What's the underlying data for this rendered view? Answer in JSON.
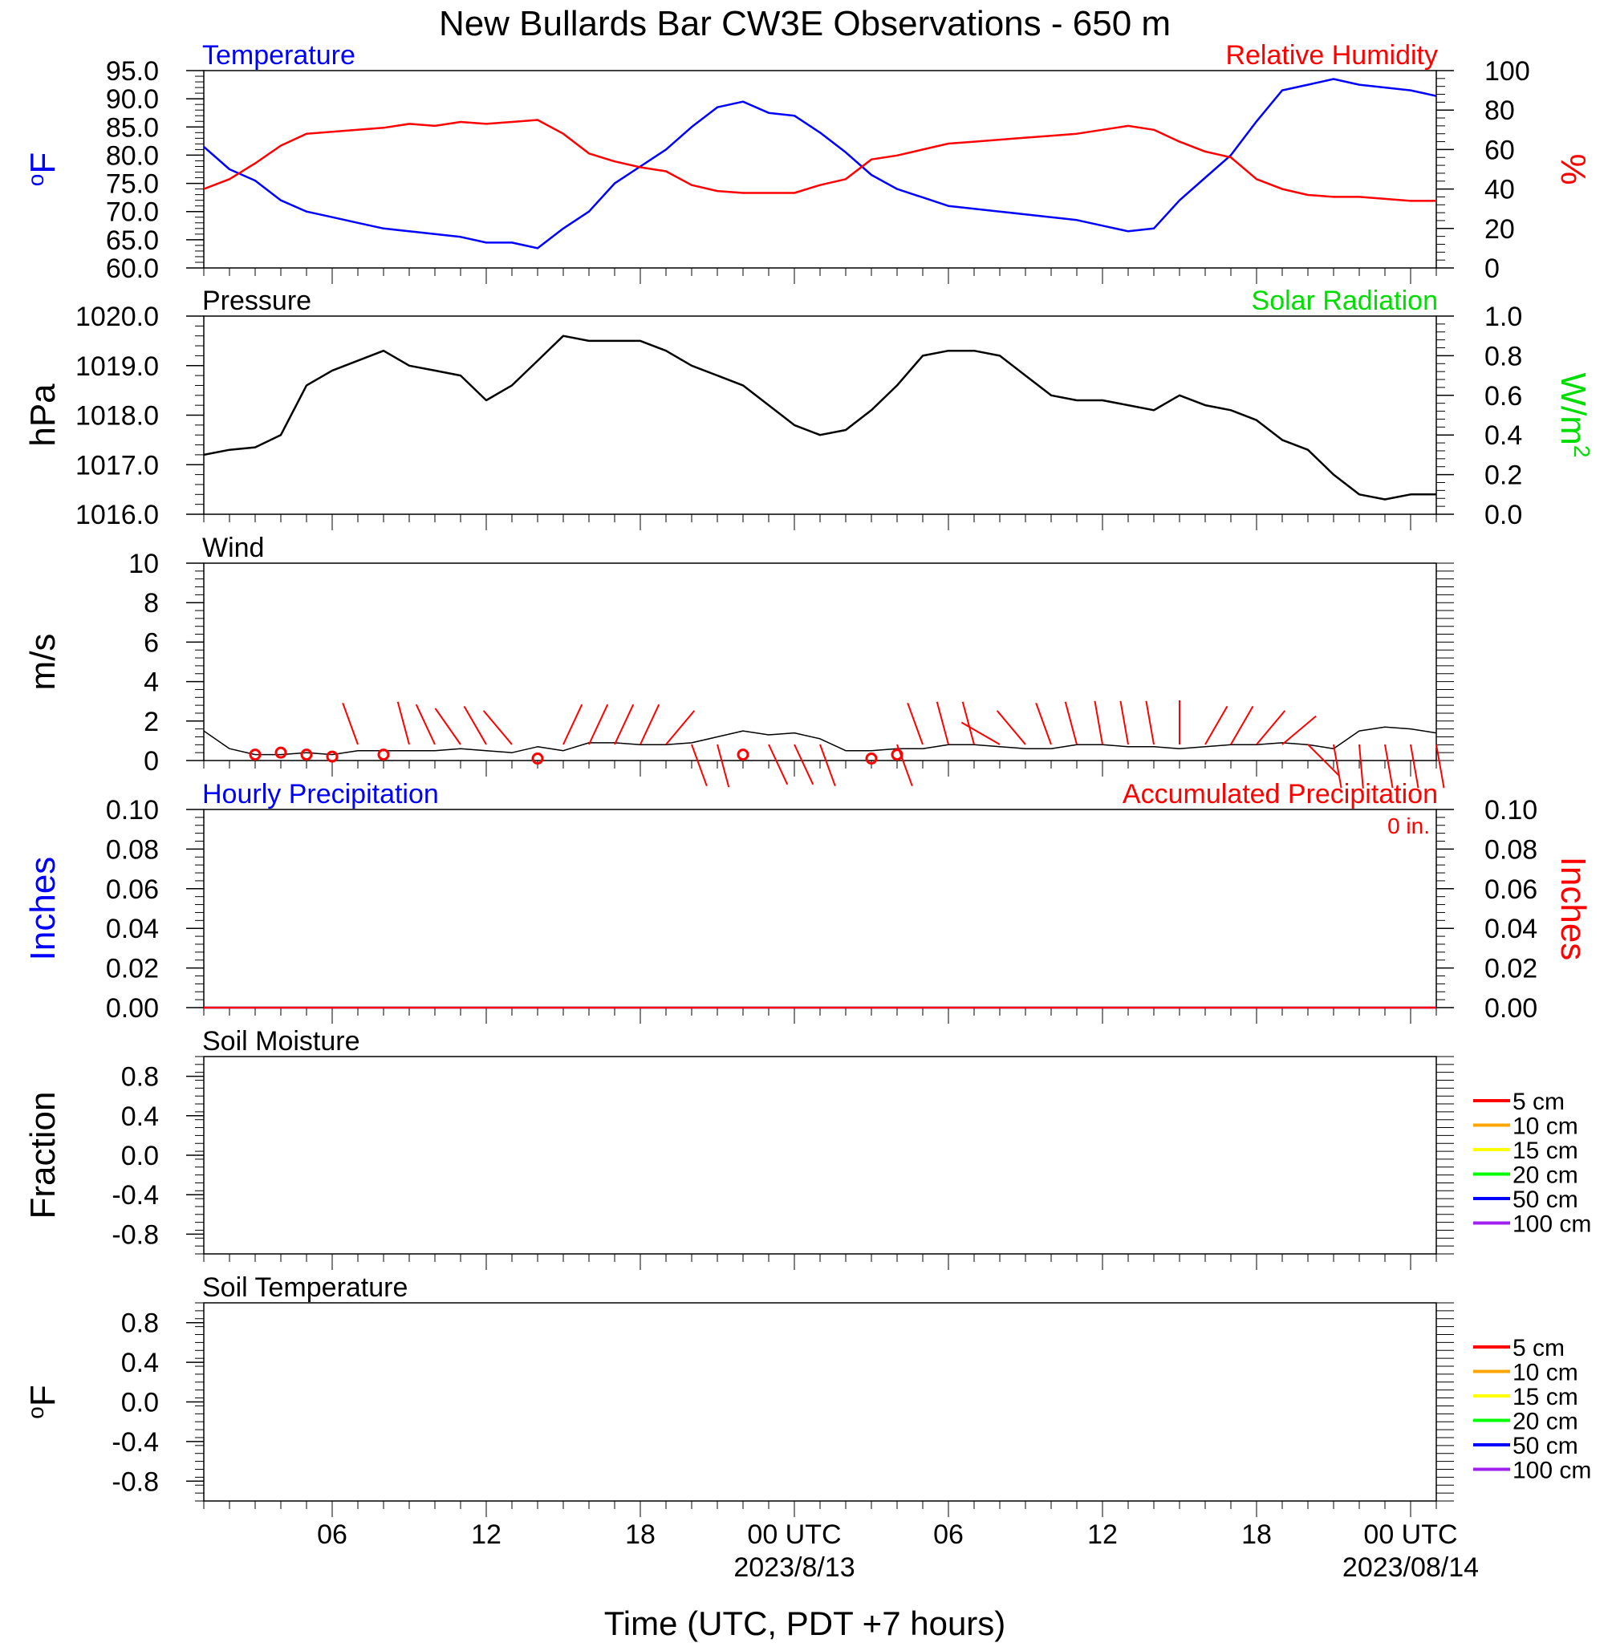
{
  "title": "New Bullards Bar CW3E Observations - 650 m",
  "xlabel": "Time (UTC, PDT +7 hours)",
  "x_ticks": [
    "06",
    "12",
    "18",
    "00 UTC",
    "06",
    "12",
    "18",
    "00 UTC"
  ],
  "x_dates": [
    "2023/8/13",
    "2023/08/14"
  ],
  "x_range_hours": [
    1,
    49
  ],
  "colors": {
    "blue": "#0000ff",
    "red": "#ff0000",
    "green": "#00dd00",
    "black": "#000000"
  },
  "chart_data": [
    {
      "type": "line",
      "title_left": "Temperature",
      "title_right": "Relative Humidity",
      "ylabel_left": "oF",
      "ylabel_right": "%",
      "ylim_left": [
        60,
        95
      ],
      "ylim_right": [
        0,
        100
      ],
      "yticks_left": [
        "95.0",
        "90.0",
        "85.0",
        "80.0",
        "75.0",
        "70.0",
        "65.0",
        "60.0"
      ],
      "yticks_right": [
        "100",
        "80",
        "60",
        "40",
        "20",
        "0"
      ],
      "x_hours": [
        1,
        2,
        3,
        4,
        5,
        6,
        7,
        8,
        9,
        10,
        11,
        12,
        13,
        14,
        15,
        16,
        17,
        18,
        19,
        20,
        21,
        22,
        23,
        24,
        25,
        26,
        27,
        28,
        29,
        30,
        31,
        32,
        33,
        34,
        35,
        36,
        37,
        38,
        39,
        40,
        41,
        42,
        43,
        44,
        45,
        46,
        47,
        48,
        49
      ],
      "series": [
        {
          "name": "Temperature",
          "color": "#0000ff",
          "axis": "left",
          "values": [
            81.5,
            77.5,
            75.5,
            72,
            70,
            69,
            68,
            67,
            66.5,
            66,
            65.5,
            64.5,
            64.5,
            63.5,
            67,
            70,
            75,
            78,
            81,
            85,
            88.5,
            89.5,
            87.5,
            87,
            84,
            80.5,
            76.5,
            74,
            72.5,
            71,
            70.5,
            70,
            69.5,
            69,
            68.5,
            67.5,
            66.5,
            67,
            72,
            76,
            80,
            86,
            91.5,
            92.5,
            93.5,
            92.5,
            92,
            91.5,
            90.5
          ]
        },
        {
          "name": "Relative Humidity",
          "color": "#ff0000",
          "axis": "right",
          "values": [
            40,
            45,
            53,
            62,
            68,
            69,
            70,
            71,
            73,
            72,
            74,
            73,
            74,
            75,
            68,
            58,
            54,
            51,
            49,
            42,
            39,
            38,
            38,
            38,
            42,
            45,
            55,
            57,
            60,
            63,
            64,
            65,
            66,
            67,
            68,
            70,
            72,
            70,
            64,
            59,
            56,
            45,
            40,
            37,
            36,
            36,
            35,
            34,
            34
          ]
        }
      ]
    },
    {
      "type": "line",
      "title_left": "Pressure",
      "title_right": "Solar Radiation",
      "ylabel_left": "hPa",
      "ylabel_right": "W/m2",
      "ylim_left": [
        1016.0,
        1020.0
      ],
      "ylim_right": [
        0,
        1.0
      ],
      "yticks_left": [
        "1020.0",
        "1019.0",
        "1018.0",
        "1017.0",
        "1016.0"
      ],
      "yticks_right": [
        "1.0",
        "0.8",
        "0.6",
        "0.4",
        "0.2",
        "0.0"
      ],
      "x_hours": [
        1,
        2,
        3,
        4,
        5,
        6,
        7,
        8,
        9,
        10,
        11,
        12,
        13,
        14,
        15,
        16,
        17,
        18,
        19,
        20,
        21,
        22,
        23,
        24,
        25,
        26,
        27,
        28,
        29,
        30,
        31,
        32,
        33,
        34,
        35,
        36,
        37,
        38,
        39,
        40,
        41,
        42,
        43,
        44,
        45,
        46,
        47,
        48,
        49
      ],
      "series": [
        {
          "name": "Pressure",
          "color": "#000000",
          "axis": "left",
          "values": [
            1017.2,
            1017.3,
            1017.35,
            1017.6,
            1018.6,
            1018.9,
            1019.1,
            1019.3,
            1019.0,
            1018.9,
            1018.8,
            1018.3,
            1018.6,
            1019.1,
            1019.6,
            1019.5,
            1019.5,
            1019.5,
            1019.3,
            1019.0,
            1018.8,
            1018.6,
            1018.2,
            1017.8,
            1017.6,
            1017.7,
            1018.1,
            1018.6,
            1019.2,
            1019.3,
            1019.3,
            1019.2,
            1018.8,
            1018.4,
            1018.3,
            1018.3,
            1018.2,
            1018.1,
            1018.4,
            1018.2,
            1018.1,
            1017.9,
            1017.5,
            1017.3,
            1016.8,
            1016.4,
            1016.3,
            1016.4,
            1016.4
          ]
        }
      ]
    },
    {
      "type": "line",
      "title_left": "Wind",
      "ylabel_left": "m/s",
      "ylim_left": [
        0,
        10
      ],
      "yticks_left": [
        "10",
        "8",
        "6",
        "4",
        "2",
        "0"
      ],
      "x_hours": [
        1,
        2,
        3,
        4,
        5,
        6,
        7,
        8,
        9,
        10,
        11,
        12,
        13,
        14,
        15,
        16,
        17,
        18,
        19,
        20,
        21,
        22,
        23,
        24,
        25,
        26,
        27,
        28,
        29,
        30,
        31,
        32,
        33,
        34,
        35,
        36,
        37,
        38,
        39,
        40,
        41,
        42,
        43,
        44,
        45,
        46,
        47,
        48,
        49
      ],
      "series": [
        {
          "name": "Wind speed",
          "color": "#000000",
          "axis": "left",
          "values": [
            1.5,
            0.6,
            0.3,
            0.3,
            0.4,
            0.3,
            0.5,
            0.5,
            0.5,
            0.5,
            0.6,
            0.5,
            0.4,
            0.7,
            0.5,
            0.9,
            0.9,
            0.8,
            0.8,
            0.9,
            1.2,
            1.5,
            1.3,
            1.4,
            1.1,
            0.5,
            0.5,
            0.6,
            0.6,
            0.8,
            0.8,
            0.7,
            0.6,
            0.6,
            0.8,
            0.8,
            0.7,
            0.7,
            0.6,
            0.7,
            0.8,
            0.8,
            0.9,
            0.8,
            0.6,
            1.5,
            1.7,
            1.6,
            1.4
          ]
        },
        {
          "name": "Wind direction (deg, barbs)",
          "color": "#ff0000",
          "x": [
            3,
            4,
            5,
            6,
            7,
            8,
            9,
            10,
            11,
            12,
            13,
            14,
            15,
            16,
            17,
            18,
            19,
            20,
            21,
            22,
            23,
            24,
            25,
            26,
            27,
            28,
            29,
            30,
            31,
            32,
            33,
            34,
            35,
            36,
            37,
            38,
            39,
            40,
            41,
            42,
            43,
            44,
            45,
            46,
            47,
            48,
            49
          ],
          "values": [
            null,
            null,
            null,
            null,
            340,
            null,
            345,
            335,
            325,
            330,
            320,
            null,
            25,
            25,
            25,
            25,
            40,
            160,
            165,
            null,
            155,
            155,
            160,
            null,
            null,
            160,
            340,
            345,
            345,
            300,
            320,
            340,
            345,
            350,
            350,
            350,
            0,
            30,
            30,
            40,
            50,
            135,
            170,
            175,
            170,
            170,
            170
          ]
        },
        {
          "name": "Calm",
          "color": "#ff0000",
          "x": [
            3,
            4,
            5,
            6,
            8,
            14,
            22,
            27,
            28
          ],
          "values": [
            0.3,
            0.4,
            0.3,
            0.2,
            0.3,
            0.1,
            0.3,
            0.1,
            0.3
          ]
        }
      ]
    },
    {
      "type": "line",
      "title_left": "Hourly Precipitation",
      "title_right": "Accumulated Precipitation",
      "annotation": "0 in.",
      "ylabel_left": "Inches",
      "ylabel_right": "Inches",
      "ylim_left": [
        0,
        0.1
      ],
      "ylim_right": [
        0,
        0.1
      ],
      "yticks_left": [
        "0.10",
        "0.08",
        "0.06",
        "0.04",
        "0.02",
        "0.00"
      ],
      "yticks_right": [
        "0.10",
        "0.08",
        "0.06",
        "0.04",
        "0.02",
        "0.00"
      ],
      "series": [
        {
          "name": "Hourly Precipitation",
          "color": "#0000ff",
          "x": [
            1,
            49
          ],
          "values": [
            0,
            0
          ]
        },
        {
          "name": "Accumulated Precipitation",
          "color": "#ff0000",
          "x": [
            1,
            49
          ],
          "values": [
            0,
            0
          ]
        }
      ]
    },
    {
      "type": "line",
      "title_left": "Soil Moisture",
      "ylabel_left": "Fraction",
      "ylim_left": [
        -1.0,
        1.0
      ],
      "yticks_left": [
        "0.8",
        "0.4",
        "0.0",
        "-0.4",
        "-0.8"
      ],
      "legend": [
        {
          "name": "5 cm",
          "color": "#ff0000"
        },
        {
          "name": "10 cm",
          "color": "#ffa500"
        },
        {
          "name": "15 cm",
          "color": "#ffff00"
        },
        {
          "name": "20 cm",
          "color": "#00ff00"
        },
        {
          "name": "50 cm",
          "color": "#0000ff"
        },
        {
          "name": "100 cm",
          "color": "#a020f0"
        }
      ],
      "series": []
    },
    {
      "type": "line",
      "title_left": "Soil Temperature",
      "ylabel_left": "oF",
      "ylim_left": [
        -1.0,
        1.0
      ],
      "yticks_left": [
        "0.8",
        "0.4",
        "0.0",
        "-0.4",
        "-0.8"
      ],
      "legend": [
        {
          "name": "5 cm",
          "color": "#ff0000"
        },
        {
          "name": "10 cm",
          "color": "#ffa500"
        },
        {
          "name": "15 cm",
          "color": "#ffff00"
        },
        {
          "name": "20 cm",
          "color": "#00ff00"
        },
        {
          "name": "50 cm",
          "color": "#0000ff"
        },
        {
          "name": "100 cm",
          "color": "#a020f0"
        }
      ],
      "series": []
    }
  ]
}
